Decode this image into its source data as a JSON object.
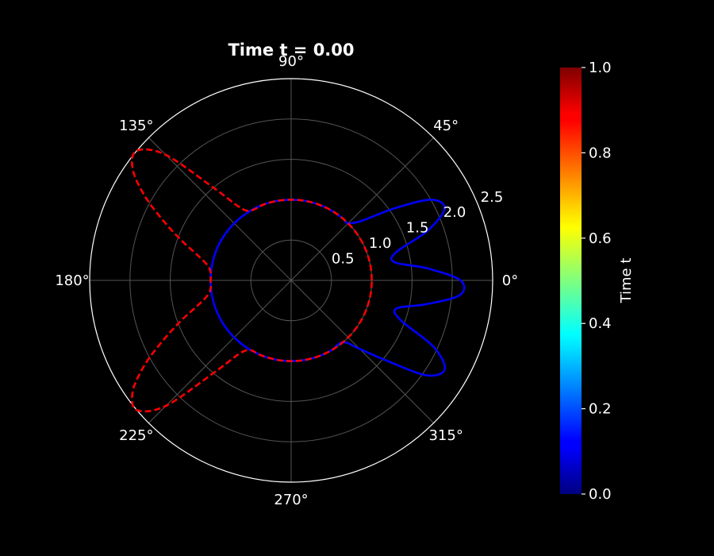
{
  "chart_data": {
    "type": "polar-line",
    "title": "Time t = 0.00",
    "background": "#000000",
    "foreground": "#ffffff",
    "grid": true,
    "theta_ticks": [
      "0°",
      "45°",
      "90°",
      "135°",
      "180°",
      "225°",
      "270°",
      "315°"
    ],
    "r_ticks": [
      "0.5",
      "1.0",
      "1.5",
      "2.0",
      "2.5"
    ],
    "r_tick_values": [
      0.5,
      1.0,
      1.5,
      2.0,
      2.5
    ],
    "rlim": [
      0,
      2.5
    ],
    "series": [
      {
        "style": "solid",
        "color": "#0000ff",
        "theta_deg": [
          -150,
          -140,
          -130,
          -120,
          -110,
          -100,
          -90,
          -80,
          -70,
          -60,
          -50,
          -45,
          -40,
          -35,
          -30,
          -25,
          -20,
          -15,
          -10,
          -5,
          0,
          5,
          10,
          15,
          20,
          25,
          30,
          35,
          40,
          45,
          50,
          60,
          70,
          80,
          90,
          100,
          110,
          120,
          130,
          140,
          150,
          160,
          170,
          180,
          190,
          200,
          210
        ],
        "r": [
          1.0,
          1.0,
          1.0,
          1.0,
          1.0,
          1.0,
          1.0,
          1.0,
          1.0,
          1.0,
          1.0,
          1.2,
          1.55,
          2.05,
          2.2,
          1.95,
          1.45,
          1.35,
          1.7,
          2.1,
          2.1,
          1.7,
          1.3,
          1.35,
          1.8,
          2.1,
          2.0,
          1.55,
          1.15,
          1.0,
          1.0,
          1.0,
          1.0,
          1.0,
          1.0,
          1.0,
          1.0,
          1.0,
          1.0,
          1.0,
          1.0,
          1.0,
          1.0,
          1.0,
          1.0,
          1.0,
          1.0
        ]
      },
      {
        "style": "dashed",
        "color": "#ff0000",
        "theta_deg": [
          0,
          10,
          20,
          30,
          40,
          50,
          60,
          70,
          80,
          90,
          100,
          110,
          120,
          125,
          130,
          135,
          140,
          145,
          150,
          155,
          160,
          165,
          170,
          175,
          180,
          185,
          190,
          195,
          200,
          205,
          210,
          215,
          220,
          225,
          230,
          235,
          240,
          245,
          250,
          260,
          270,
          280,
          290,
          300,
          310,
          320,
          330,
          340,
          350,
          360
        ],
        "r": [
          1.0,
          1.0,
          1.0,
          1.0,
          1.0,
          1.0,
          1.0,
          1.0,
          1.0,
          1.0,
          1.0,
          1.0,
          1.0,
          1.1,
          1.5,
          2.2,
          2.5,
          2.4,
          2.1,
          1.75,
          1.45,
          1.2,
          1.05,
          1.0,
          1.0,
          1.0,
          1.05,
          1.2,
          1.45,
          1.75,
          2.1,
          2.4,
          2.5,
          2.2,
          1.5,
          1.1,
          1.0,
          1.0,
          1.0,
          1.0,
          1.0,
          1.0,
          1.0,
          1.0,
          1.0,
          1.0,
          1.0,
          1.0,
          1.0,
          1.0
        ]
      }
    ],
    "colorbar": {
      "label": "Time t",
      "range": [
        0,
        1
      ],
      "ticks": [
        "0.0",
        "0.2",
        "0.4",
        "0.6",
        "0.8",
        "1.0"
      ],
      "tick_values": [
        0,
        0.2,
        0.4,
        0.6,
        0.8,
        1.0
      ],
      "colormap": "jet"
    }
  }
}
